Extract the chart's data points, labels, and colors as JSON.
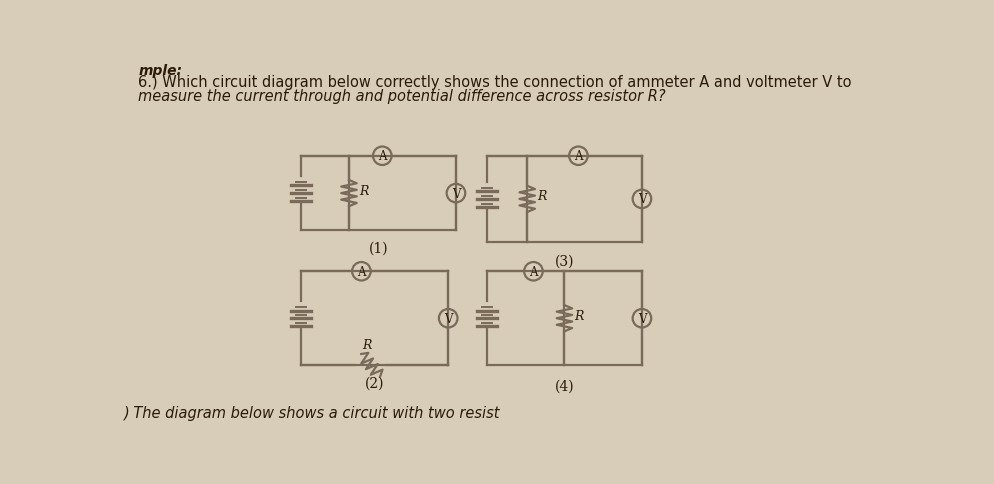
{
  "bg_color": "#d8cdb8",
  "line_color": "#7a6a5a",
  "title_line1": "6.) Which circuit diagram below correctly shows the connection of ammeter A and voltmeter V to",
  "title_line2": "measure the current through and potential difference across resistor R?",
  "bottom_text": ") The diagram below shows a circuit with two resist",
  "label1": "(1)",
  "label2": "(3)",
  "label3": "(2)",
  "label4": "(4)",
  "text_color": "#2a1a0a",
  "font_size": 11,
  "header_text": "mple:"
}
